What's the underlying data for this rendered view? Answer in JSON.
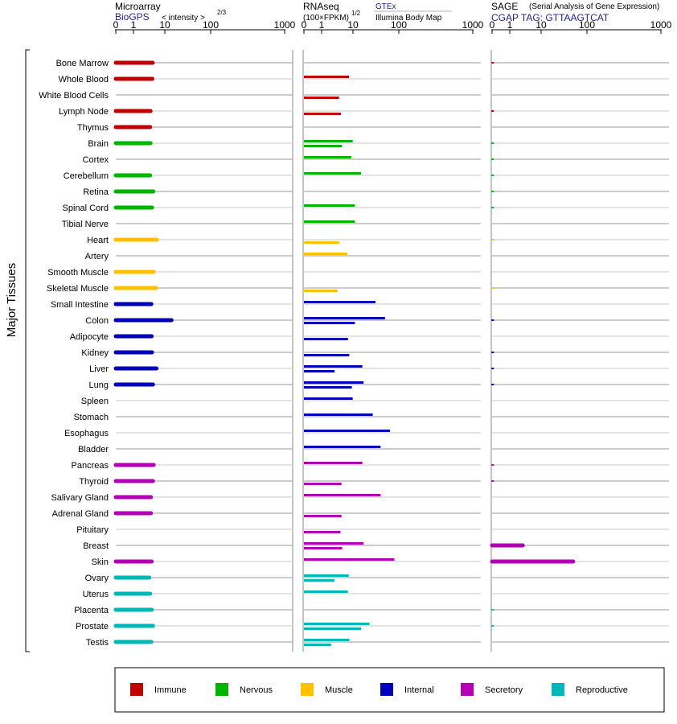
{
  "headers": {
    "microarray": {
      "title": "Microarray",
      "source": "BioGPS",
      "unit": "< intensity >",
      "unit_exp": "2/3"
    },
    "rnaseq": {
      "title": "RNAseq",
      "unit": "(100×FPKM)",
      "unit_exp": "1/2",
      "source": "GTEx",
      "source2": "Illumina Body Map"
    },
    "sage": {
      "title": "SAGE",
      "subtitle": "(Serial Analysis of Gene Expression)",
      "tag": "CGAP TAG: GTTAAGTCAT"
    }
  },
  "y_axis_label": "Major Tissues",
  "colors": {
    "Immune": "#c00000",
    "Nervous": "#00b400",
    "Muscle": "#ffc000",
    "Internal": "#0000b8",
    "Secretory": "#b400b4",
    "Reproductive": "#00b8b8"
  },
  "chart_data": {
    "type": "bar",
    "scale": "power-transformed (log-like) axis",
    "ticks": [
      "0",
      "1",
      "10",
      "100",
      "1000"
    ],
    "xlim": [
      0,
      1000
    ],
    "tissues": [
      "Bone Marrow",
      "Whole Blood",
      "White Blood Cells",
      "Lymph Node",
      "Thymus",
      "Brain",
      "Cortex",
      "Cerebellum",
      "Retina",
      "Spinal Cord",
      "Tibial Nerve",
      "Heart",
      "Artery",
      "Smooth Muscle",
      "Skeletal Muscle",
      "Small Intestine",
      "Colon",
      "Adipocyte",
      "Kidney",
      "Liver",
      "Lung",
      "Spleen",
      "Stomach",
      "Esophagus",
      "Bladder",
      "Pancreas",
      "Thyroid",
      "Salivary Gland",
      "Adrenal Gland",
      "Pituitary",
      "Breast",
      "Skin",
      "Ovary",
      "Uterus",
      "Placenta",
      "Prostate",
      "Testis"
    ],
    "groups": [
      "Immune",
      "Immune",
      "Immune",
      "Immune",
      "Immune",
      "Nervous",
      "Nervous",
      "Nervous",
      "Nervous",
      "Nervous",
      "Nervous",
      "Muscle",
      "Muscle",
      "Muscle",
      "Muscle",
      "Internal",
      "Internal",
      "Internal",
      "Internal",
      "Internal",
      "Internal",
      "Internal",
      "Internal",
      "Internal",
      "Internal",
      "Secretory",
      "Secretory",
      "Secretory",
      "Secretory",
      "Secretory",
      "Secretory",
      "Secretory",
      "Reproductive",
      "Reproductive",
      "Reproductive",
      "Reproductive",
      "Reproductive"
    ],
    "microarray": [
      4.1,
      4.0,
      null,
      3.5,
      3.4,
      3.5,
      null,
      3.4,
      4.3,
      3.9,
      null,
      5.6,
      null,
      4.4,
      5.3,
      3.7,
      14,
      3.8,
      3.9,
      5.4,
      4.2,
      null,
      null,
      null,
      null,
      4.4,
      4.2,
      3.6,
      3.6,
      null,
      null,
      3.8,
      3.2,
      3.4,
      3.8,
      4.2,
      3.7
    ],
    "rnaseq_gtex": [
      null,
      7.5,
      null,
      null,
      null,
      9.8,
      8.8,
      15,
      null,
      11,
      11,
      null,
      6.6,
      null,
      null,
      31,
      50,
      null,
      null,
      16,
      17,
      9.8,
      27,
      64,
      40,
      16,
      null,
      40,
      null,
      null,
      17,
      80,
      7.3,
      6.9,
      null,
      23,
      7.7
    ],
    "rnaseq_ibm": [
      null,
      null,
      3.6,
      4.1,
      null,
      4.4,
      null,
      null,
      null,
      null,
      null,
      3.7,
      null,
      null,
      3.2,
      null,
      null,
      6.9,
      7.6,
      null,
      null,
      null,
      null,
      null,
      null,
      null,
      4.3,
      null,
      3.7,
      4.0,
      null,
      null,
      null,
      null,
      null,
      null,
      null
    ],
    "rnaseq_ibm2": [
      null,
      null,
      null,
      null,
      null,
      null,
      null,
      null,
      null,
      null,
      null,
      1.8,
      null,
      null,
      1.8,
      null,
      11,
      3.6,
      4.2,
      2.6,
      9.2,
      null,
      null,
      null,
      null,
      null,
      2.3,
      null,
      4.3,
      null,
      4.5,
      null,
      2.6,
      null,
      null,
      15,
      2.0
    ],
    "sage": [
      0.05,
      null,
      null,
      0.05,
      null,
      0.04,
      0.03,
      0.03,
      0.03,
      0.03,
      null,
      0.02,
      null,
      null,
      0.02,
      null,
      0.05,
      null,
      0.05,
      0.05,
      0.05,
      null,
      null,
      null,
      null,
      0.04,
      0.04,
      null,
      null,
      null,
      2.6,
      50,
      null,
      null,
      0.03,
      0.03,
      null
    ]
  },
  "legend": [
    "Immune",
    "Nervous",
    "Muscle",
    "Internal",
    "Secretory",
    "Reproductive"
  ]
}
